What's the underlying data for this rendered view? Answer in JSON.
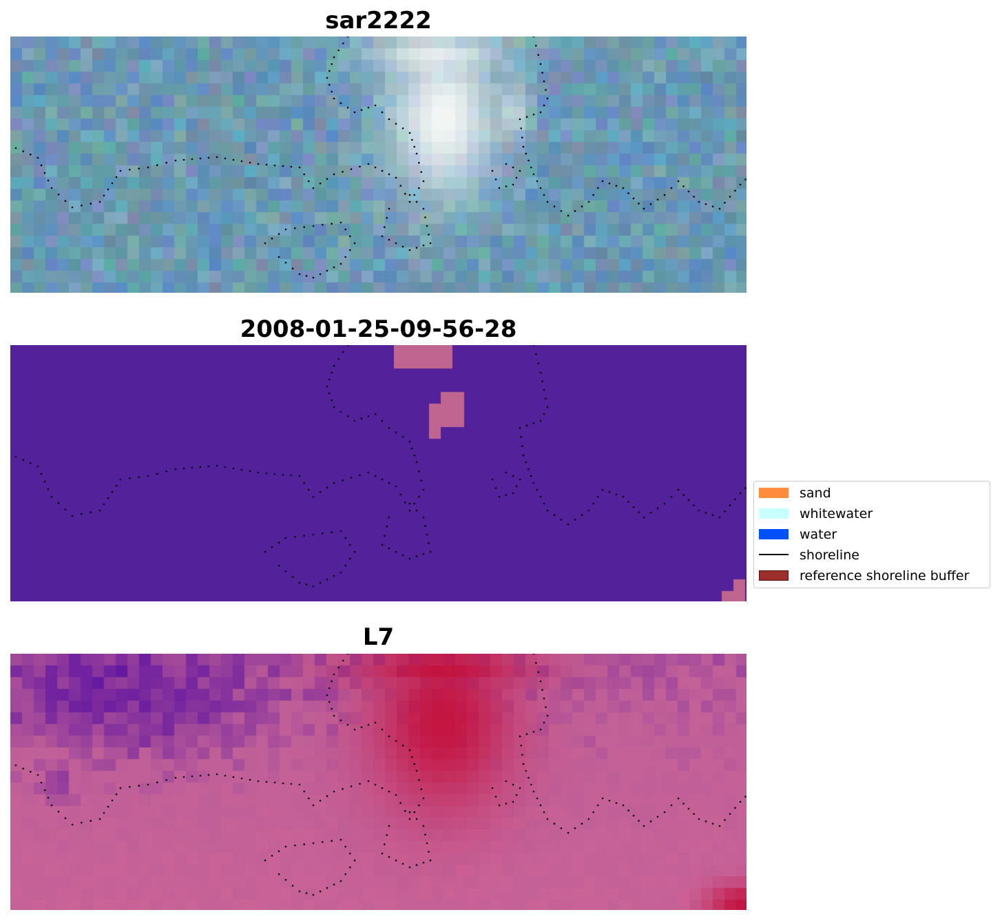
{
  "panels": [
    {
      "title": "sar2222",
      "image_kind": "rgb-composite"
    },
    {
      "title": "2008-01-25-09-56-28",
      "image_kind": "classification"
    },
    {
      "title": "L7",
      "image_kind": "index"
    }
  ],
  "legend": {
    "items": [
      {
        "label": "sand",
        "color": "#ff8c3c",
        "kind": "patch"
      },
      {
        "label": "whitewater",
        "color": "#c8ffff",
        "kind": "patch"
      },
      {
        "label": "water",
        "color": "#0050ff",
        "kind": "patch"
      },
      {
        "label": "shoreline",
        "color": "#000000",
        "kind": "line"
      },
      {
        "label": "reference shoreline buffer",
        "color": "#9b2d2d",
        "kind": "patch"
      }
    ]
  },
  "colors": {
    "classification_background": "#53219a",
    "classification_buffer": "#c06490",
    "rgb_base": "#6e9bb3",
    "rgb_bright": "#f4f7f4",
    "index_low": "#5a10a0",
    "index_mid": "#bf5f98",
    "index_high": "#c4103c",
    "shoreline_points": "#000000"
  }
}
